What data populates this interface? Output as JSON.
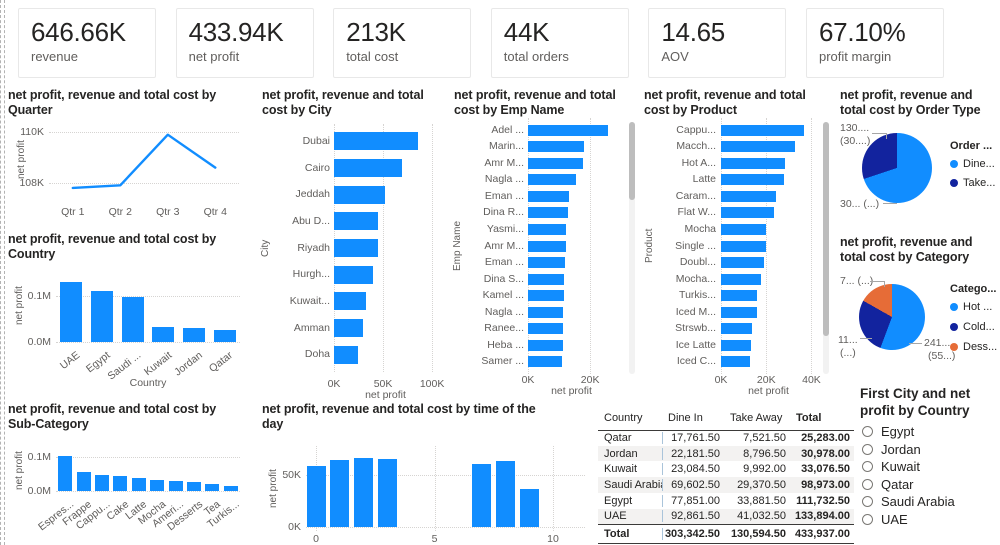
{
  "colors": {
    "bar": "#118DFF",
    "navy": "#12239E",
    "orange": "#E66C37"
  },
  "kpis": [
    {
      "value": "646.66K",
      "label": "revenue"
    },
    {
      "value": "433.94K",
      "label": "net profit"
    },
    {
      "value": "213K",
      "label": "total cost"
    },
    {
      "value": "44K",
      "label": "total orders"
    },
    {
      "value": "14.65",
      "label": "AOV"
    },
    {
      "value": "67.10%",
      "label": "profit margin"
    }
  ],
  "chart_data": [
    {
      "id": "quarter",
      "type": "line",
      "title": "net profit, revenue and total cost by Quarter",
      "xlabel": "",
      "ylabel": "net profit",
      "value_unit": "K",
      "categories": [
        "Qtr 1",
        "Qtr 2",
        "Qtr 3",
        "Qtr 4"
      ],
      "values": [
        107.8,
        107.9,
        109.9,
        108.6
      ],
      "ylim": [
        107.4,
        110.4
      ],
      "yticks": [
        {
          "label": "110K",
          "value": 110
        },
        {
          "label": "108K",
          "value": 108
        }
      ]
    },
    {
      "id": "country",
      "type": "bar",
      "title": "net profit, revenue and total cost by Country",
      "xlabel": "Country",
      "ylabel": "net profit",
      "value_unit": "M",
      "categories": [
        "UAE",
        "Egypt",
        "Saudi ...",
        "Kuwait",
        "Jordan",
        "Qatar"
      ],
      "values": [
        0.13,
        0.109,
        0.096,
        0.033,
        0.03,
        0.026
      ],
      "ylim": [
        0,
        0.155
      ],
      "yticks": [
        {
          "label": "0.1M",
          "value": 0.1
        },
        {
          "label": "0.0M",
          "value": 0
        }
      ]
    },
    {
      "id": "subcategory",
      "type": "bar",
      "title": "net profit, revenue and total cost by Sub-Category",
      "xlabel": "",
      "ylabel": "net profit",
      "value_unit": "M",
      "categories": [
        "Espres...",
        "Frappe",
        "Cappu...",
        "Cake",
        "Latte",
        "Mocha",
        "Ameri...",
        "Desserts",
        "Tea",
        "Turkis..."
      ],
      "values": [
        0.103,
        0.056,
        0.047,
        0.044,
        0.038,
        0.032,
        0.029,
        0.026,
        0.021,
        0.015
      ],
      "ylim": [
        0,
        0.121
      ],
      "yticks": [
        {
          "label": "0.1M",
          "value": 0.1
        },
        {
          "label": "0.0M",
          "value": 0
        }
      ]
    },
    {
      "id": "city",
      "type": "hbar",
      "title": "net profit, revenue and total cost by City",
      "xlabel": "net profit",
      "ylabel": "City",
      "value_unit": "K",
      "categories": [
        "Dubai",
        "Cairo",
        "Jeddah",
        "Abu D...",
        "Riyadh",
        "Hurgh...",
        "Kuwait...",
        "Amman",
        "Doha"
      ],
      "values": [
        86,
        69,
        52,
        45,
        45,
        40,
        33,
        30,
        24
      ],
      "xlim": [
        0,
        105
      ],
      "xticks": [
        {
          "label": "0K",
          "value": 0
        },
        {
          "label": "50K",
          "value": 50
        },
        {
          "label": "100K",
          "value": 100
        }
      ]
    },
    {
      "id": "emp_name",
      "type": "hbar",
      "title": "net profit, revenue and total cost by Emp Name",
      "xlabel": "net profit",
      "ylabel": "Emp Name",
      "value_unit": "K",
      "categories": [
        "Adel ...",
        "Marin...",
        "Amr M...",
        "Nagla ...",
        "Eman ...",
        "Dina R...",
        "Yasmi...",
        "Amr M...",
        "Eman ...",
        "Dina S...",
        "Kamel ...",
        "Nagla ...",
        "Ranee...",
        "Heba ...",
        "Samer ..."
      ],
      "values": [
        25.7,
        18.0,
        17.6,
        15.4,
        13.1,
        12.9,
        12.1,
        12.1,
        11.9,
        11.7,
        11.5,
        11.4,
        11.3,
        11.3,
        11.1
      ],
      "xlim": [
        0,
        28
      ],
      "xticks": [
        {
          "label": "0K",
          "value": 0
        },
        {
          "label": "20K",
          "value": 20
        }
      ]
    },
    {
      "id": "product",
      "type": "hbar",
      "title": "net profit, revenue and total cost by Product",
      "xlabel": "net profit",
      "ylabel": "Product",
      "value_unit": "K",
      "categories": [
        "Cappu...",
        "Macch...",
        "Hot A...",
        "Latte",
        "Caram...",
        "Flat W...",
        "Mocha",
        "Single ...",
        "Doubl...",
        "Mocha...",
        "Turkis...",
        "Iced M...",
        "Strswb...",
        "Ice Latte",
        "Iced C..."
      ],
      "values": [
        36.5,
        32.5,
        28.1,
        27.7,
        24.2,
        23.3,
        19.8,
        19.8,
        18.9,
        17.6,
        15.8,
        15.8,
        13.6,
        13.2,
        12.7
      ],
      "xlim": [
        0,
        42
      ],
      "xticks": [
        {
          "label": "0K",
          "value": 0
        },
        {
          "label": "20K",
          "value": 20
        },
        {
          "label": "40K",
          "value": 40
        }
      ]
    },
    {
      "id": "order_type",
      "type": "pie",
      "title": "net profit, revenue and total cost by Order Type",
      "legend_title": "Order ...",
      "slices": [
        {
          "name": "Dine...",
          "pct": 69.9,
          "color": "#118DFF",
          "label_lines": [
            "30... (...)"
          ]
        },
        {
          "name": "Take...",
          "pct": 30.1,
          "color": "#12239E",
          "label_lines": [
            "130....",
            "(30....)"
          ]
        }
      ]
    },
    {
      "id": "category",
      "type": "pie",
      "title": "net profit, revenue and total cost by Category",
      "legend_title": "Catego...",
      "slices": [
        {
          "name": "Hot  ...",
          "pct": 55.7,
          "color": "#118DFF",
          "label_lines": [
            "241....",
            "(55...)"
          ]
        },
        {
          "name": "Cold...",
          "pct": 27.5,
          "color": "#12239E",
          "label_lines": [
            "11...",
            "(...)"
          ]
        },
        {
          "name": "Dess...",
          "pct": 16.8,
          "color": "#E66C37",
          "label_lines": [
            "7... (...)"
          ]
        }
      ]
    },
    {
      "id": "time_of_day",
      "type": "bar",
      "title": "net profit, revenue and total cost by time of the day",
      "xlabel": "",
      "ylabel": "net profit",
      "value_unit": "K",
      "x": [
        0,
        1,
        2,
        3,
        7,
        8,
        9
      ],
      "values": [
        59,
        64,
        66,
        65,
        61,
        63,
        37
      ],
      "ylim": [
        0,
        74
      ],
      "yticks": [
        {
          "label": "0K",
          "value": 0
        },
        {
          "label": "50K",
          "value": 50
        }
      ],
      "xticks": [
        {
          "label": "0",
          "value": 0
        },
        {
          "label": "5",
          "value": 5
        },
        {
          "label": "10",
          "value": 10
        }
      ]
    },
    {
      "id": "breakdown_table",
      "type": "table",
      "headers": [
        "Country",
        "Dine In",
        "Take Away",
        "Total"
      ],
      "sort_indicator": "▲",
      "rows": [
        [
          "Qatar",
          "17,761.50",
          "7,521.50",
          "25,283.00"
        ],
        [
          "Jordan",
          "22,181.50",
          "8,796.50",
          "30,978.00"
        ],
        [
          "Kuwait",
          "23,084.50",
          "9,992.00",
          "33,076.50"
        ],
        [
          "Saudi Arabia",
          "69,602.50",
          "29,370.50",
          "98,973.00"
        ],
        [
          "Egypt",
          "77,851.00",
          "33,881.50",
          "111,732.50"
        ],
        [
          "UAE",
          "92,861.50",
          "41,032.50",
          "133,894.00"
        ]
      ],
      "total_row": [
        "Total",
        "303,342.50",
        "130,594.50",
        "433,937.00"
      ]
    }
  ],
  "slicer": {
    "title": "First City and net profit by Country",
    "items": [
      "Egypt",
      "Jordan",
      "Kuwait",
      "Qatar",
      "Saudi Arabia",
      "UAE"
    ]
  }
}
